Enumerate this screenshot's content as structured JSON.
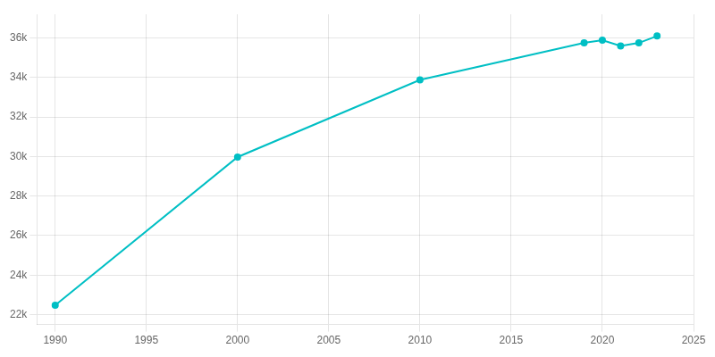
{
  "chart_data": {
    "type": "line",
    "x": [
      1990,
      2000,
      2010,
      2019,
      2020,
      2021,
      2022,
      2023
    ],
    "values": [
      22477,
      29975,
      33880,
      35750,
      35893,
      35600,
      35750,
      36100
    ],
    "color": "#00BFC4",
    "marker": "circle",
    "xlim": [
      1989,
      2025
    ],
    "xticks": [
      1990,
      1995,
      2000,
      2005,
      2010,
      2015,
      2020,
      2025
    ],
    "ylim": [
      21500,
      37200
    ],
    "yticks": [
      {
        "value": 22000,
        "label": "22k"
      },
      {
        "value": 24000,
        "label": "24k"
      },
      {
        "value": 26000,
        "label": "26k"
      },
      {
        "value": 28000,
        "label": "28k"
      },
      {
        "value": 30000,
        "label": "30k"
      },
      {
        "value": 32000,
        "label": "32k"
      },
      {
        "value": 34000,
        "label": "34k"
      },
      {
        "value": 36000,
        "label": "36k"
      }
    ],
    "grid": true
  }
}
